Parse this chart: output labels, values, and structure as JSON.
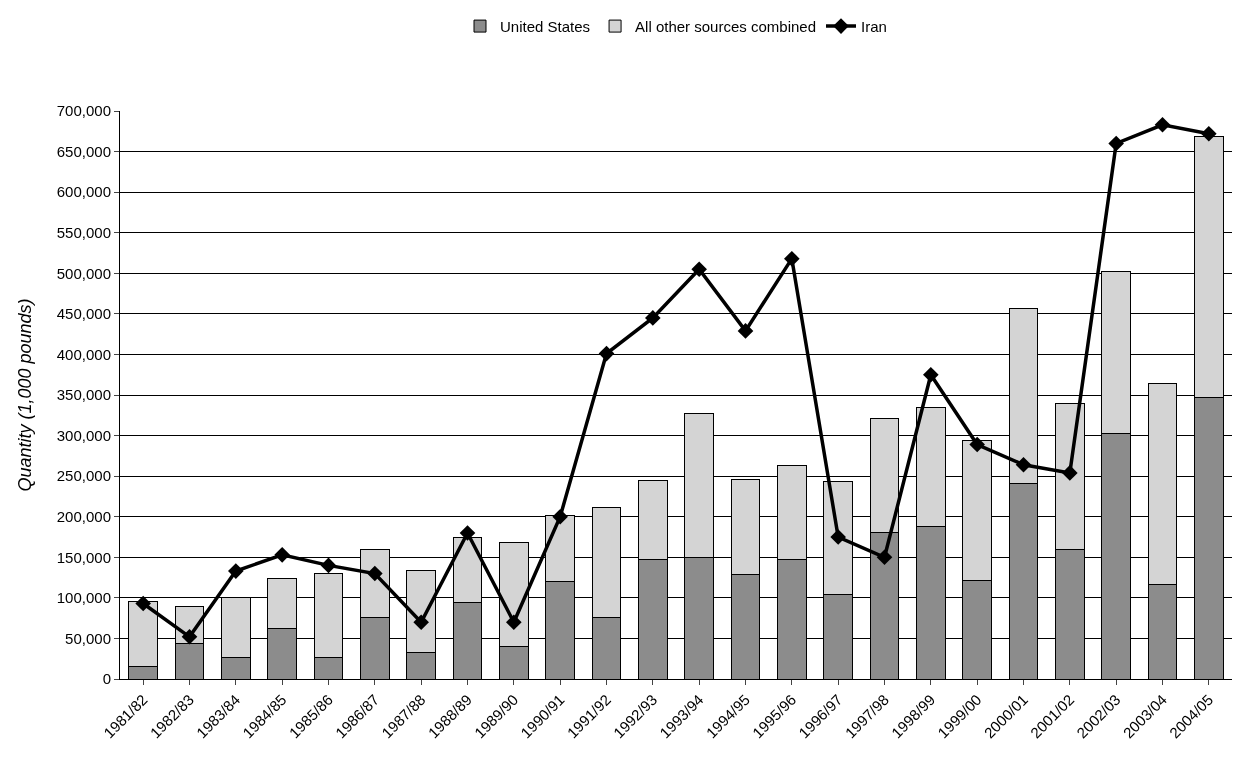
{
  "chart_data": {
    "type": "bar",
    "stacked": true,
    "ylabel": "Quantity (1,000 pounds)",
    "categories": [
      "1981/82",
      "1982/83",
      "1983/84",
      "1984/85",
      "1985/86",
      "1986/87",
      "1987/88",
      "1988/89",
      "1989/90",
      "1990/91",
      "1991/92",
      "1992/93",
      "1993/94",
      "1994/95",
      "1995/96",
      "1996/97",
      "1997/98",
      "1998/99",
      "1999/00",
      "2000/01",
      "2001/02",
      "2002/03",
      "2003/04",
      "2004/05"
    ],
    "series": [
      {
        "name": "United States",
        "color": "#8c8c8c",
        "values": [
          15000,
          44000,
          27000,
          62000,
          27000,
          76000,
          33000,
          94000,
          40000,
          120000,
          76000,
          147000,
          150000,
          129000,
          147000,
          104000,
          180000,
          188000,
          122000,
          241000,
          160000,
          302000,
          117000,
          347000
        ]
      },
      {
        "name": "All other sources combined",
        "color": "#d4d4d4",
        "values": [
          81000,
          45000,
          73000,
          62000,
          103000,
          83000,
          101000,
          80000,
          128000,
          82000,
          135000,
          98000,
          177000,
          117000,
          116000,
          139000,
          141000,
          146000,
          172000,
          216000,
          180000,
          200000,
          247000,
          322000
        ]
      },
      {
        "name": "Iran",
        "type": "line",
        "color": "#000000",
        "marker": "diamond",
        "line_style": "solid",
        "values": [
          93000,
          52000,
          133000,
          153000,
          140000,
          130000,
          70000,
          180000,
          70000,
          200000,
          401000,
          445000,
          505000,
          429000,
          518000,
          175000,
          150000,
          375000,
          289000,
          264000,
          254000,
          660000,
          683000,
          672000
        ]
      }
    ],
    "ylim": [
      0,
      700000
    ],
    "yticks": [
      {
        "value": 0,
        "label": "0"
      },
      {
        "value": 50000,
        "label": "50,000"
      },
      {
        "value": 100000,
        "label": "100,000"
      },
      {
        "value": 150000,
        "label": "150,000"
      },
      {
        "value": 200000,
        "label": "200,000"
      },
      {
        "value": 250000,
        "label": "250,000"
      },
      {
        "value": 300000,
        "label": "300,000"
      },
      {
        "value": 350000,
        "label": "350,000"
      },
      {
        "value": 400000,
        "label": "400,000"
      },
      {
        "value": 450000,
        "label": "450,000"
      },
      {
        "value": 500000,
        "label": "500,000"
      },
      {
        "value": 550000,
        "label": "550,000"
      },
      {
        "value": 600000,
        "label": "600,000"
      },
      {
        "value": 650000,
        "label": "650,000"
      },
      {
        "value": 700000,
        "label": "700,000"
      }
    ],
    "grid": "y",
    "legend": "top"
  }
}
